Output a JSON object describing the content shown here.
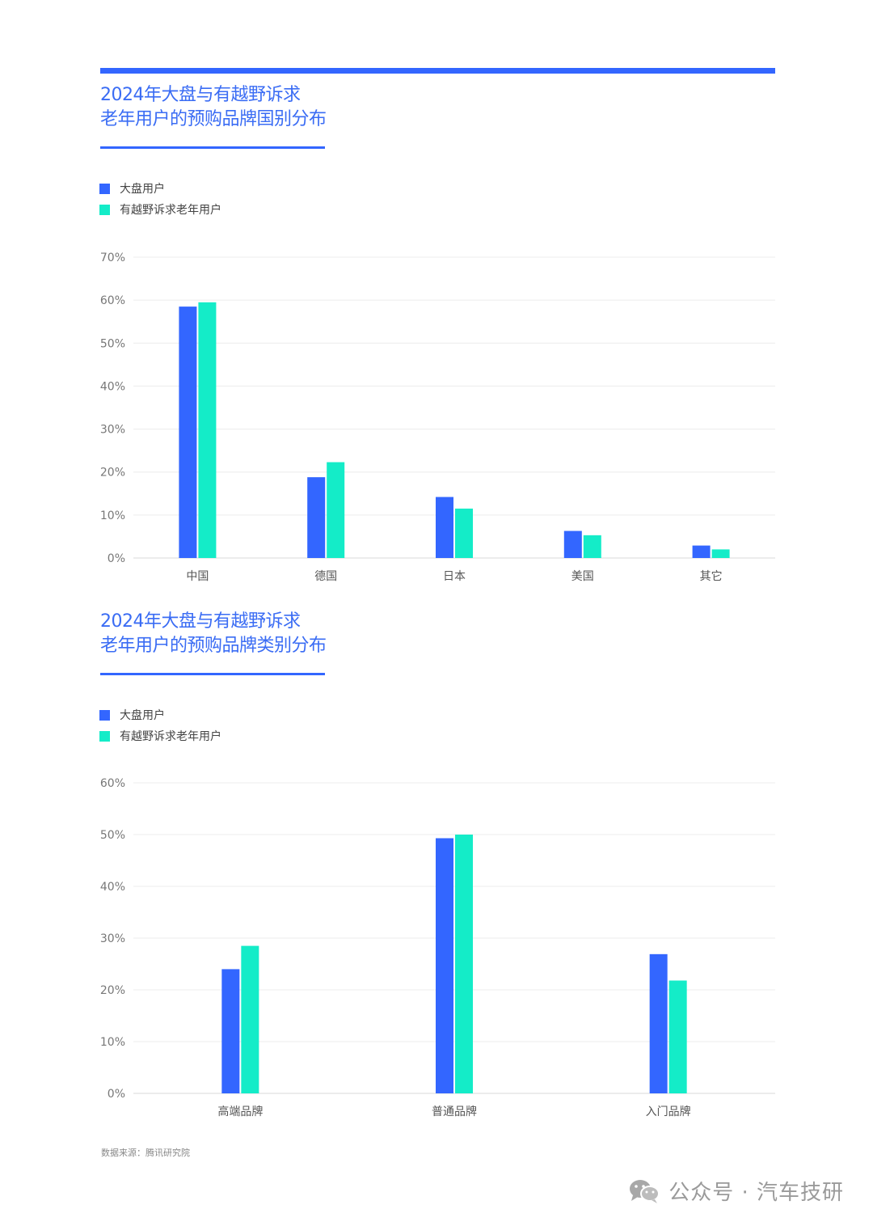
{
  "colors": {
    "accent": "#3366ff",
    "series1": "#3366ff",
    "series2": "#14ecc8",
    "title": "#3a6cf4"
  },
  "watermark": {
    "icon": "wechat-icon",
    "text": "公众号 · 汽车技研"
  },
  "source": "数据来源：腾讯研究院",
  "chart_data": [
    {
      "type": "bar",
      "title_lines": [
        "2024年大盘与有越野诉求",
        "老年用户的预购品牌国别分布"
      ],
      "categories": [
        "中国",
        "德国",
        "日本",
        "美国",
        "其它"
      ],
      "series": [
        {
          "name": "大盘用户",
          "color": "#3366ff",
          "values": [
            58.5,
            18.8,
            14.2,
            6.3,
            2.9
          ]
        },
        {
          "name": "有越野诉求老年用户",
          "color": "#14ecc8",
          "values": [
            59.5,
            22.3,
            11.5,
            5.3,
            2.0
          ]
        }
      ],
      "yticks": [
        "0%",
        "10%",
        "20%",
        "30%",
        "40%",
        "50%",
        "60%",
        "70%"
      ],
      "ylim": [
        0,
        70
      ],
      "grid": true,
      "legend_position": "top-left"
    },
    {
      "type": "bar",
      "title_lines": [
        "2024年大盘与有越野诉求",
        "老年用户的预购品牌类别分布"
      ],
      "categories": [
        "高端品牌",
        "普通品牌",
        "入门品牌"
      ],
      "series": [
        {
          "name": "大盘用户",
          "color": "#3366ff",
          "values": [
            24.0,
            49.3,
            26.9
          ]
        },
        {
          "name": "有越野诉求老年用户",
          "color": "#14ecc8",
          "values": [
            28.5,
            50.0,
            21.8
          ]
        }
      ],
      "yticks": [
        "0%",
        "10%",
        "20%",
        "30%",
        "40%",
        "50%",
        "60%"
      ],
      "ylim": [
        0,
        60
      ],
      "grid": true,
      "legend_position": "top-left"
    }
  ]
}
